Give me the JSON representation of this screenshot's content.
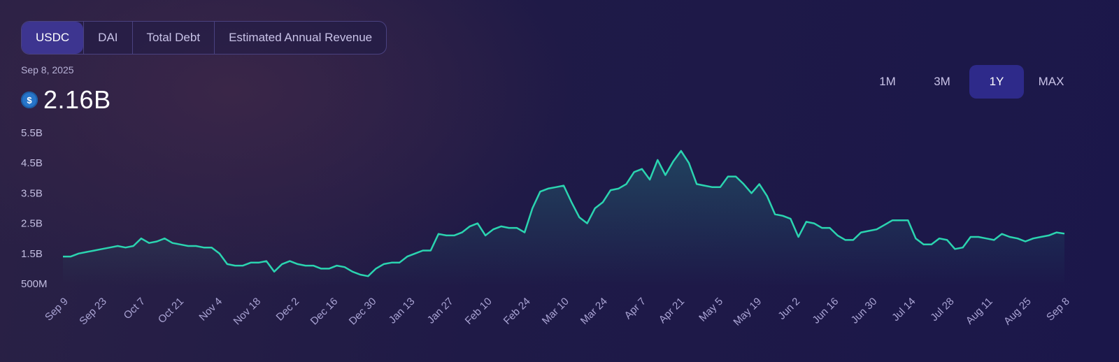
{
  "tabs": {
    "items": [
      "USDC",
      "DAI",
      "Total Debt",
      "Estimated Annual Revenue"
    ],
    "active": "USDC"
  },
  "header": {
    "date": "Sep 8, 2025",
    "value": "2.16B",
    "coin_icon": "usdc-coin-icon",
    "coin_symbol": "$"
  },
  "ranges": {
    "items": [
      "1M",
      "3M",
      "1Y",
      "MAX"
    ],
    "active": "1Y"
  },
  "colors": {
    "line": "#2bd4b0",
    "accent_tab": "#3d3590",
    "accent_range": "#2e2a8a"
  },
  "chart_data": {
    "type": "area",
    "ylabel": "",
    "xlabel": "",
    "yticks": [
      "5.5B",
      "4.5B",
      "3.5B",
      "2.5B",
      "1.5B",
      "500M"
    ],
    "ytick_values": [
      5.5,
      4.5,
      3.5,
      2.5,
      1.5,
      0.5
    ],
    "ylim": [
      0.5,
      5.5
    ],
    "xticks": [
      "Sep 9",
      "Sep 23",
      "Oct 7",
      "Oct 21",
      "Nov 4",
      "Nov 18",
      "Dec 2",
      "Dec 16",
      "Dec 30",
      "Jan 13",
      "Jan 27",
      "Feb 10",
      "Feb 24",
      "Mar 10",
      "Mar 24",
      "Apr 7",
      "Apr 21",
      "May 5",
      "May 19",
      "Jun 2",
      "Jun 16",
      "Jun 30",
      "Jul 14",
      "Jul 28",
      "Aug 11",
      "Aug 25",
      "Sep 8"
    ],
    "grid": false,
    "series": [
      {
        "values": [
          1.4,
          1.4,
          1.5,
          1.55,
          1.6,
          1.65,
          1.7,
          1.75,
          1.7,
          1.75,
          2.0,
          1.85,
          1.9,
          2.0,
          1.85,
          1.8,
          1.75,
          1.75,
          1.7,
          1.7,
          1.5,
          1.15,
          1.1,
          1.1,
          1.2,
          1.2,
          1.25,
          0.9,
          1.15,
          1.25,
          1.15,
          1.1,
          1.1,
          1.0,
          1.0,
          1.1,
          1.05,
          0.9,
          0.8,
          0.75,
          1.0,
          1.15,
          1.2,
          1.2,
          1.4,
          1.5,
          1.6,
          1.6,
          2.15,
          2.1,
          2.1,
          2.2,
          2.4,
          2.5,
          2.1,
          2.3,
          2.4,
          2.35,
          2.35,
          2.2,
          3.0,
          3.55,
          3.65,
          3.7,
          3.75,
          3.2,
          2.7,
          2.5,
          3.0,
          3.2,
          3.6,
          3.65,
          3.8,
          4.2,
          4.3,
          3.95,
          4.6,
          4.1,
          4.55,
          4.9,
          4.5,
          3.8,
          3.75,
          3.7,
          3.7,
          4.05,
          4.05,
          3.8,
          3.5,
          3.8,
          3.4,
          2.8,
          2.75,
          2.65,
          2.05,
          2.55,
          2.5,
          2.35,
          2.35,
          2.1,
          1.95,
          1.95,
          2.2,
          2.25,
          2.3,
          2.45,
          2.6,
          2.6,
          2.6,
          2.0,
          1.8,
          1.8,
          2.0,
          1.95,
          1.65,
          1.7,
          2.05,
          2.05,
          2.0,
          1.95,
          2.15,
          2.05,
          2.0,
          1.9,
          2.0,
          2.05,
          2.1,
          2.2,
          2.16
        ]
      }
    ]
  }
}
